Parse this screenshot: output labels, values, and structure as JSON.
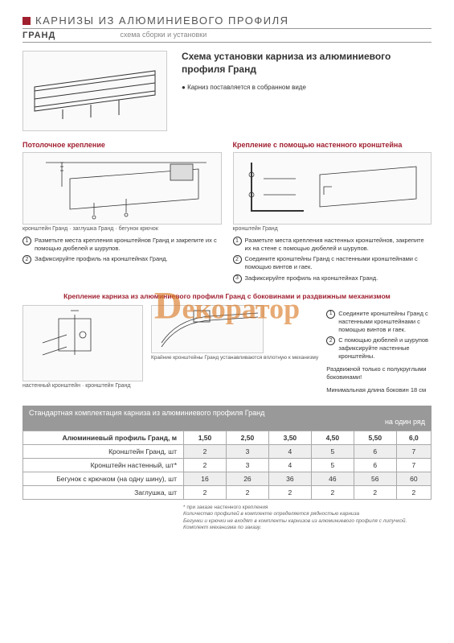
{
  "header": {
    "title": "КАРНИЗЫ ИЗ АЛЮМИНИЕВОГО ПРОФИЛЯ",
    "subtitle": "ГРАНД",
    "desc": "схема сборки и установки"
  },
  "main_title": "Схема установки карниза из алюминиевого профиля Гранд",
  "main_note": "Карниз поставляется в собранном виде",
  "section_ceiling": {
    "title": "Потолочное крепление",
    "label1": "кронштейн Гранд",
    "label2": "заглушка Гранд",
    "label3": "бегунок крючок",
    "step1": "Разметьте места крепления кронштейнов Гранд и закрепите их с помощью дюбелей и шурупов.",
    "step2": "Зафиксируйте профиль на кронштейнах Гранд."
  },
  "section_wall": {
    "title": "Крепление с помощью настенного кронштейна",
    "label1": "кронштейн Гранд",
    "step1": "Разметьте места крепления настенных кронштейнов, закрепите их на стене с помощью дюбелей и шурупов.",
    "step2": "Соедините кронштейны Гранд с настенными кронштейнами с помощью винтов и гаек.",
    "step3": "Зафиксируйте профиль на кронштейнах Гранд."
  },
  "section_sliding": {
    "title": "Крепление карниза из алюминиевого профиля Гранд с боковинами и раздвижным механизмом",
    "label1": "настенный кронштейн",
    "label2": "кронштейн Гранд",
    "label3": "Крайние кронштейны Гранд устанавливаются вплотную к механизму",
    "step1": "Соедините кронштейны Гранд с настенными кронштейнами с помощью винтов и гаек.",
    "step2": "С помощью дюбелей и шурупов зафиксируйте настенные кронштейны.",
    "note1": "Раздвижной только с полукруглыми боковинами!",
    "note2": "Минимальная длина боковин 18 см"
  },
  "watermark": "екоратор",
  "table": {
    "title1": "Стандартная комплектация карниза из алюминиевого профиля Гранд",
    "title2": "на один ряд",
    "col_header": "Алюминиевый профиль Гранд, м",
    "cols": [
      "1,50",
      "2,50",
      "3,50",
      "4,50",
      "5,50",
      "6,0"
    ],
    "rows": [
      {
        "label": "Кронштейн Гранд, шт",
        "vals": [
          "2",
          "3",
          "4",
          "5",
          "6",
          "7"
        ]
      },
      {
        "label": "Кронштейн настенный, шт*",
        "vals": [
          "2",
          "3",
          "4",
          "5",
          "6",
          "7"
        ]
      },
      {
        "label": "Бегунок с крючком (на одну шину), шт",
        "vals": [
          "16",
          "26",
          "36",
          "46",
          "56",
          "60"
        ]
      },
      {
        "label": "Заглушка, шт",
        "vals": [
          "2",
          "2",
          "2",
          "2",
          "2",
          "2"
        ]
      }
    ],
    "footnote1": "* при заказе настенного крепления",
    "footnote2": "Количество профилей в комплекте определяется рядностью карниза",
    "footnote3": "Бегунки и крючки не входят в комплекты карнизов из алюминиевого профиля с липучкой.",
    "footnote4": "Комплект механизма по заказу."
  }
}
